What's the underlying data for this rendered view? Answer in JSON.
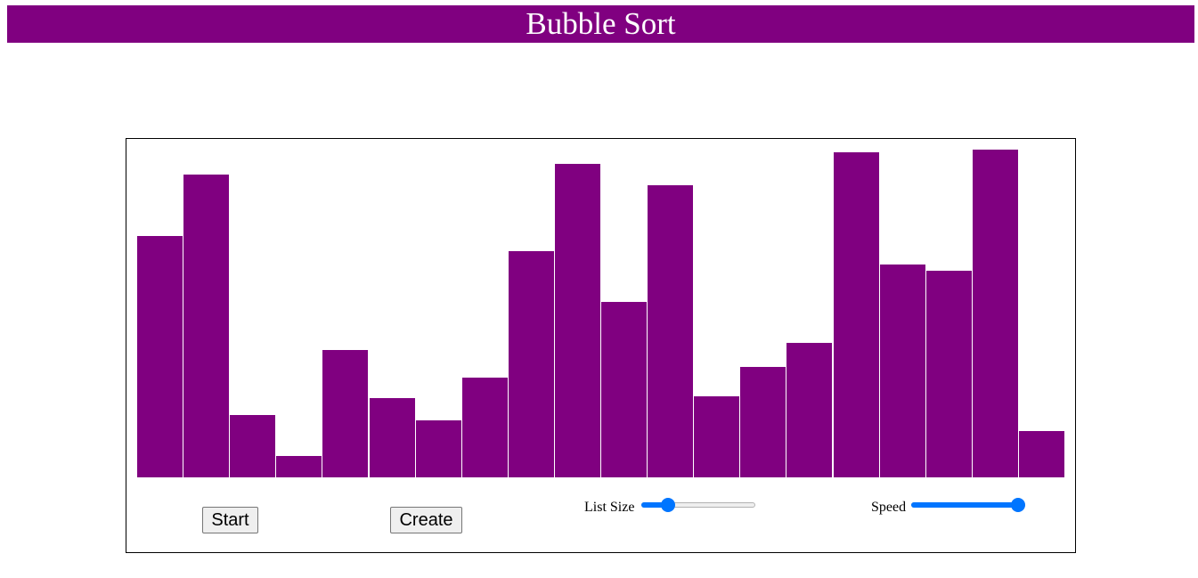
{
  "header": {
    "title": "Bubble Sort"
  },
  "colors": {
    "accent": "#800080",
    "slider": "#0075ff"
  },
  "controls": {
    "start_label": "Start",
    "create_label": "Create",
    "list_size_label": "List Size",
    "speed_label": "Speed",
    "list_size_level": 0.2,
    "speed_level": 1.0
  },
  "chart_data": {
    "type": "bar",
    "values": [
      271,
      340,
      70,
      24,
      143,
      89,
      64,
      112,
      254,
      352,
      197,
      328,
      91,
      124,
      151,
      365,
      239,
      232,
      368,
      52
    ],
    "ylim": [
      0,
      380
    ]
  }
}
